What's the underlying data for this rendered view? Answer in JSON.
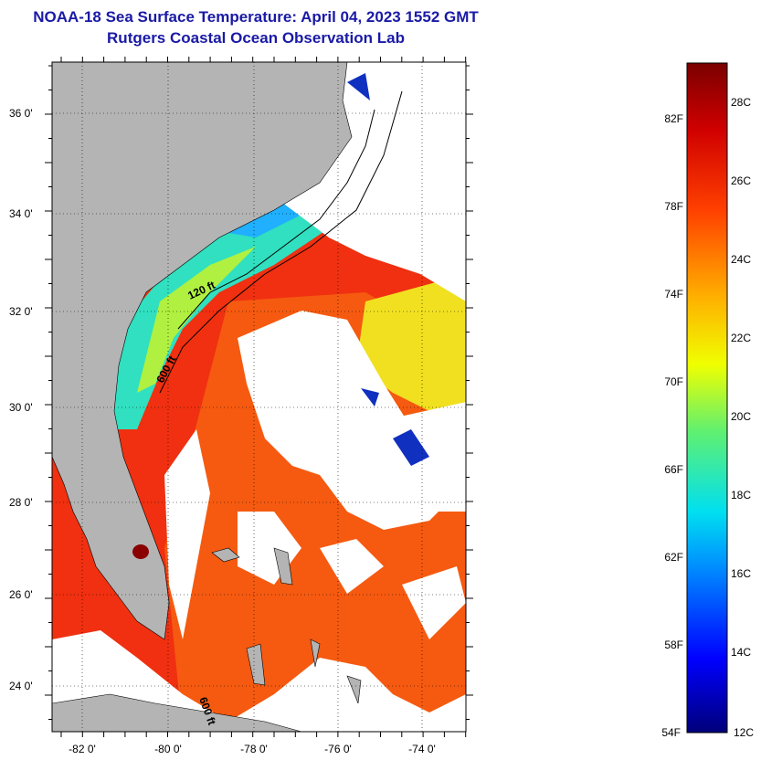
{
  "title": "NOAA-18 Sea Surface Temperature:  April 04, 2023 1552 GMT",
  "subtitle": "Rutgers Coastal Ocean Observation Lab",
  "map": {
    "lat_ticks": [
      {
        "value": 36,
        "label": "36 0'"
      },
      {
        "value": 34,
        "label": "34 0'"
      },
      {
        "value": 32,
        "label": "32 0'"
      },
      {
        "value": 30,
        "label": "30 0'"
      },
      {
        "value": 28,
        "label": "28 0'"
      },
      {
        "value": 26,
        "label": "26 0'"
      },
      {
        "value": 24,
        "label": "24 0'"
      }
    ],
    "lon_ticks": [
      {
        "value": -82,
        "label": "-82 0'"
      },
      {
        "value": -80,
        "label": "-80 0'"
      },
      {
        "value": -78,
        "label": "-78 0'"
      },
      {
        "value": -76,
        "label": "-76 0'"
      },
      {
        "value": -74,
        "label": "-74 0'"
      }
    ],
    "isobaths": [
      "120 ft",
      "600 ft",
      "600 ft"
    ],
    "colors": {
      "land": "#b4b4b4",
      "cloud": "#ffffff",
      "grid": "dotted"
    }
  },
  "colorbar": {
    "fahrenheit": [
      "82F",
      "78F",
      "74F",
      "70F",
      "66F",
      "62F",
      "58F",
      "54F"
    ],
    "celsius": [
      "28C",
      "26C",
      "24C",
      "22C",
      "20C",
      "18C",
      "16C",
      "14C",
      "12C"
    ],
    "colors": [
      "#00007a",
      "#0000ff",
      "#00bfff",
      "#40e0d0",
      "#7fff3f",
      "#ffff00",
      "#ffa500",
      "#ff3000",
      "#c80000",
      "#7a0000"
    ]
  }
}
